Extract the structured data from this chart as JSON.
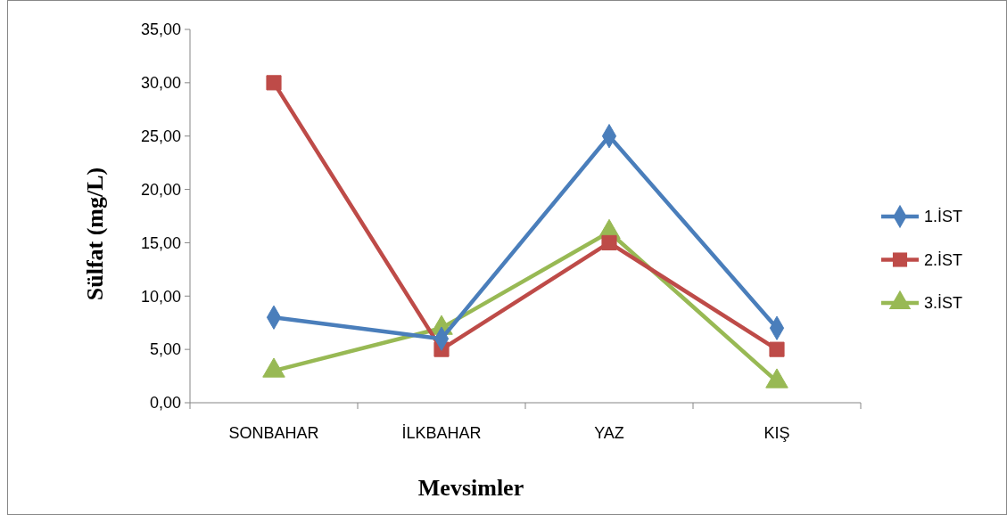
{
  "chart_data": {
    "type": "line",
    "xlabel": "Mevsimler",
    "ylabel": "Sülfat (mg/L)",
    "categories": [
      "SONBAHAR",
      "İLKBAHAR",
      "YAZ",
      "KIŞ"
    ],
    "series": [
      {
        "name": "1.İST",
        "color": "#4a7ebb",
        "marker": "diamond",
        "values": [
          8,
          6,
          25,
          7
        ]
      },
      {
        "name": "2.İST",
        "color": "#be4b48",
        "marker": "square",
        "values": [
          30,
          5,
          15,
          5
        ]
      },
      {
        "name": "3.İST",
        "color": "#98b954",
        "marker": "triangle",
        "values": [
          3,
          7,
          16,
          2
        ]
      }
    ],
    "ylim": [
      0,
      35
    ],
    "yticks": [
      {
        "value": 0,
        "label": "0,00"
      },
      {
        "value": 5,
        "label": "5,00"
      },
      {
        "value": 10,
        "label": "10,00"
      },
      {
        "value": 15,
        "label": "15,00"
      },
      {
        "value": 20,
        "label": "20,00"
      },
      {
        "value": 25,
        "label": "25,00"
      },
      {
        "value": 30,
        "label": "30,00"
      },
      {
        "value": 35,
        "label": "35,00"
      }
    ],
    "grid": false,
    "legend": "right",
    "line_style": "solid"
  }
}
